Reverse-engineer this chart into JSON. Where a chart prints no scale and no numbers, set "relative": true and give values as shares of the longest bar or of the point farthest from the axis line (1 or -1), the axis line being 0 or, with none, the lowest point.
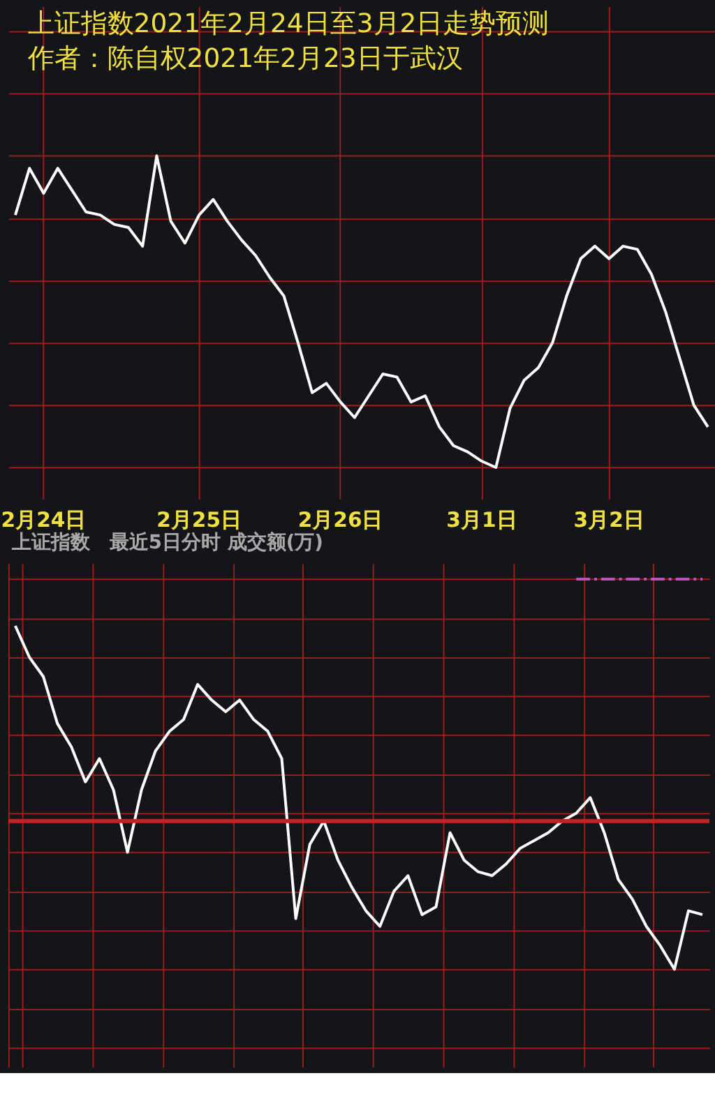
{
  "chart_data": [
    {
      "type": "line",
      "title": "上证指数2021年2月24日至3月2日走势预测",
      "subtitle": "作者：陈自权2021年2月23日于武汉",
      "relative": true,
      "categories": [
        null,
        null,
        "2月24日",
        null,
        null,
        null,
        null,
        null,
        null,
        null,
        null,
        null,
        null,
        "2月25日",
        null,
        null,
        null,
        null,
        null,
        null,
        null,
        null,
        null,
        "2月26日",
        null,
        null,
        null,
        null,
        null,
        null,
        null,
        null,
        null,
        "3月1日",
        null,
        null,
        null,
        null,
        null,
        null,
        null,
        null,
        "3月2日",
        null,
        null,
        null,
        null,
        null,
        null,
        null
      ],
      "tick_labels": "x",
      "grid": true,
      "series": [
        {
          "color": "#ffffff",
          "values": [
            0.81,
            0.96,
            0.88,
            0.96,
            0.89,
            0.82,
            0.81,
            0.78,
            0.77,
            0.71,
            1.0,
            0.79,
            0.72,
            0.81,
            0.86,
            0.79,
            0.73,
            0.68,
            0.61,
            0.55,
            0.4,
            0.24,
            0.27,
            0.21,
            0.16,
            0.23,
            0.3,
            0.29,
            0.21,
            0.23,
            0.13,
            0.07,
            0.05,
            0.02,
            0,
            0.19,
            0.28,
            0.32,
            0.4,
            0.55,
            0.67,
            0.71,
            0.67,
            0.71,
            0.7,
            0.62,
            0.5,
            0.35,
            0.2,
            0.13
          ]
        }
      ]
    },
    {
      "type": "line",
      "title": "上证指数　最近5日分时 成交额(万)",
      "relative": true,
      "categories": [
        null,
        null,
        null,
        null,
        null,
        null,
        null,
        null,
        null,
        null,
        null,
        null,
        null,
        null,
        null,
        null,
        null,
        null,
        null,
        null,
        null,
        null,
        null,
        null,
        null,
        null,
        null,
        null,
        null,
        null,
        null,
        null,
        null,
        null,
        null,
        null,
        null,
        null,
        null,
        null,
        null,
        null,
        null,
        null,
        null,
        null,
        null,
        null,
        null,
        null
      ],
      "tick_labels": false,
      "grid": true,
      "ref_lines": [
        {
          "axis": "y",
          "value": 0.38,
          "color": "#c82020"
        }
      ],
      "series": [
        {
          "color": "#ffffff",
          "values": [
            0.88,
            0.8,
            0.75,
            0.63,
            0.57,
            0.48,
            0.54,
            0.46,
            0.3,
            0.46,
            0.56,
            0.61,
            0.64,
            0.73,
            0.69,
            0.66,
            0.69,
            0.64,
            0.61,
            0.54,
            0.13,
            0.32,
            0.38,
            0.28,
            0.21,
            0.15,
            0.11,
            0.2,
            0.24,
            0.14,
            0.16,
            0.35,
            0.28,
            0.25,
            0.24,
            0.27,
            0.31,
            0.33,
            0.35,
            0.38,
            0.4,
            0.44,
            0.35,
            0.23,
            0.18,
            0.11,
            0.06,
            0,
            0.15,
            0.14
          ]
        },
        {
          "color": "#c050c0",
          "line_style": "dashed",
          "values": [
            null,
            null,
            null,
            null,
            null,
            null,
            null,
            null,
            null,
            null,
            null,
            null,
            null,
            null,
            null,
            null,
            null,
            null,
            null,
            null,
            null,
            null,
            null,
            null,
            null,
            null,
            null,
            null,
            null,
            null,
            null,
            null,
            null,
            null,
            null,
            null,
            null,
            null,
            null,
            null,
            1.0,
            1.0,
            1.0,
            1.0,
            1.0,
            1.0,
            1.0,
            1.0,
            1.0,
            1.0
          ]
        }
      ]
    }
  ]
}
